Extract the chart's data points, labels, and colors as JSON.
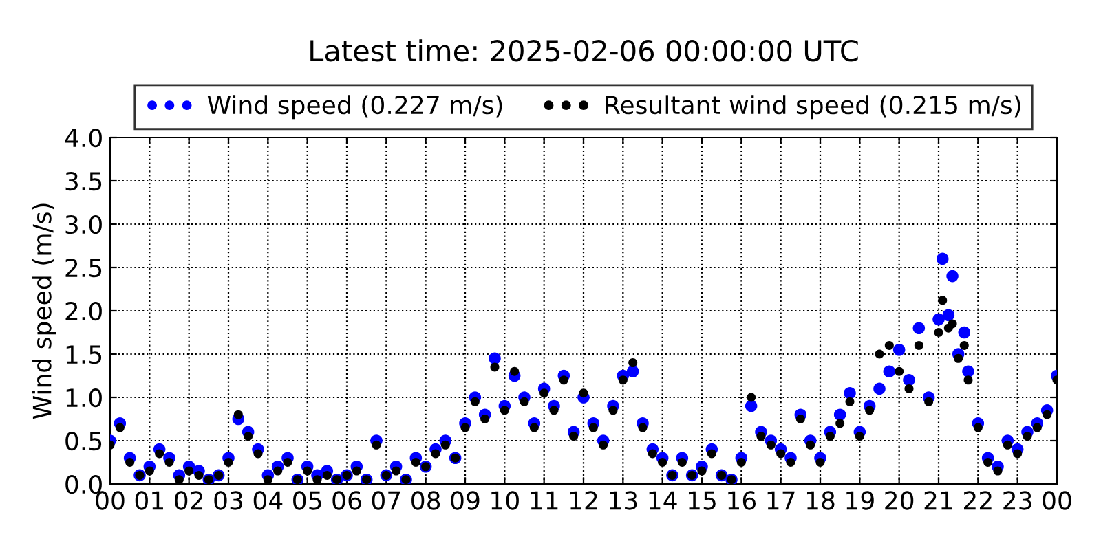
{
  "chart_data": {
    "type": "scatter",
    "title": "Latest time: 2025-02-06 00:00:00 UTC",
    "ylabel": "Wind speed (m/s)",
    "x": [
      0,
      0.25,
      0.5,
      0.75,
      1,
      1.25,
      1.5,
      1.75,
      2,
      2.25,
      2.5,
      2.75,
      3,
      3.25,
      3.5,
      3.75,
      4,
      4.25,
      4.5,
      4.75,
      5,
      5.25,
      5.5,
      5.75,
      6,
      6.25,
      6.5,
      6.75,
      7,
      7.25,
      7.5,
      7.75,
      8,
      8.25,
      8.5,
      8.75,
      9,
      9.25,
      9.5,
      9.75,
      10,
      10.25,
      10.5,
      10.75,
      11,
      11.25,
      11.5,
      11.75,
      12,
      12.25,
      12.5,
      12.75,
      13,
      13.25,
      13.5,
      13.75,
      14,
      14.25,
      14.5,
      14.75,
      15,
      15.25,
      15.5,
      15.75,
      16,
      16.25,
      16.5,
      16.75,
      17,
      17.25,
      17.5,
      17.75,
      18,
      18.25,
      18.5,
      18.75,
      19,
      19.25,
      19.5,
      19.75,
      20,
      20.25,
      20.5,
      20.75,
      21,
      21.1,
      21.25,
      21.35,
      21.5,
      21.65,
      21.75,
      22,
      22.25,
      22.5,
      22.75,
      23,
      23.25,
      23.5,
      23.75,
      24
    ],
    "series": [
      {
        "name": "Wind speed (0.227 m/s)",
        "color": "#0000ff",
        "values": [
          0.5,
          0.7,
          0.3,
          0.1,
          0.2,
          0.4,
          0.3,
          0.1,
          0.2,
          0.15,
          0.05,
          0.1,
          0.3,
          0.75,
          0.6,
          0.4,
          0.1,
          0.2,
          0.3,
          0.05,
          0.2,
          0.1,
          0.15,
          0.05,
          0.1,
          0.2,
          0.05,
          0.5,
          0.1,
          0.2,
          0.05,
          0.3,
          0.2,
          0.4,
          0.5,
          0.3,
          0.7,
          1.0,
          0.8,
          1.45,
          0.9,
          1.25,
          1.0,
          0.7,
          1.1,
          0.9,
          1.25,
          0.6,
          1.0,
          0.7,
          0.5,
          0.9,
          1.25,
          1.3,
          0.7,
          0.4,
          0.3,
          0.1,
          0.3,
          0.1,
          0.2,
          0.4,
          0.1,
          0.05,
          0.3,
          0.9,
          0.6,
          0.5,
          0.4,
          0.3,
          0.8,
          0.5,
          0.3,
          0.6,
          0.8,
          1.05,
          0.6,
          0.9,
          1.1,
          1.3,
          1.55,
          1.2,
          1.8,
          1.0,
          1.9,
          2.6,
          1.95,
          2.4,
          1.5,
          1.75,
          1.3,
          0.7,
          0.3,
          0.2,
          0.5,
          0.4,
          0.6,
          0.7,
          0.85,
          1.25
        ]
      },
      {
        "name": "Resultant wind speed (0.215 m/s)",
        "color": "#000000",
        "values": [
          0.45,
          0.65,
          0.25,
          0.1,
          0.15,
          0.35,
          0.25,
          0.05,
          0.15,
          0.1,
          0.05,
          0.1,
          0.25,
          0.8,
          0.55,
          0.35,
          0.05,
          0.15,
          0.25,
          0.05,
          0.15,
          0.05,
          0.1,
          0.05,
          0.1,
          0.15,
          0.05,
          0.45,
          0.1,
          0.15,
          0.05,
          0.25,
          0.2,
          0.35,
          0.45,
          0.3,
          0.65,
          0.95,
          0.75,
          1.35,
          0.85,
          1.3,
          0.95,
          0.65,
          1.05,
          0.85,
          1.2,
          0.55,
          1.05,
          0.65,
          0.45,
          0.85,
          1.2,
          1.4,
          0.65,
          0.35,
          0.25,
          0.1,
          0.25,
          0.1,
          0.15,
          0.35,
          0.1,
          0.05,
          0.25,
          1.0,
          0.55,
          0.45,
          0.35,
          0.25,
          0.75,
          0.45,
          0.25,
          0.55,
          0.7,
          0.95,
          0.55,
          0.85,
          1.5,
          1.6,
          1.3,
          1.1,
          1.6,
          0.95,
          1.75,
          2.12,
          1.8,
          1.85,
          1.45,
          1.6,
          1.2,
          0.65,
          0.25,
          0.15,
          0.45,
          0.35,
          0.55,
          0.65,
          0.8,
          1.2
        ]
      }
    ],
    "xlim": [
      0,
      24
    ],
    "xticks": [
      {
        "value": 0,
        "label": "00"
      },
      {
        "value": 1,
        "label": "01"
      },
      {
        "value": 2,
        "label": "02"
      },
      {
        "value": 3,
        "label": "03"
      },
      {
        "value": 4,
        "label": "04"
      },
      {
        "value": 5,
        "label": "05"
      },
      {
        "value": 6,
        "label": "06"
      },
      {
        "value": 7,
        "label": "07"
      },
      {
        "value": 8,
        "label": "08"
      },
      {
        "value": 9,
        "label": "09"
      },
      {
        "value": 10,
        "label": "10"
      },
      {
        "value": 11,
        "label": "11"
      },
      {
        "value": 12,
        "label": "12"
      },
      {
        "value": 13,
        "label": "13"
      },
      {
        "value": 14,
        "label": "14"
      },
      {
        "value": 15,
        "label": "15"
      },
      {
        "value": 16,
        "label": "16"
      },
      {
        "value": 17,
        "label": "17"
      },
      {
        "value": 18,
        "label": "18"
      },
      {
        "value": 19,
        "label": "19"
      },
      {
        "value": 20,
        "label": "20"
      },
      {
        "value": 21,
        "label": "21"
      },
      {
        "value": 22,
        "label": "22"
      },
      {
        "value": 23,
        "label": "23"
      },
      {
        "value": 24,
        "label": "00"
      }
    ],
    "ylim": [
      0,
      4
    ],
    "yticks": [
      {
        "value": 0,
        "label": "0.0"
      },
      {
        "value": 0.5,
        "label": "0.5"
      },
      {
        "value": 1,
        "label": "1.0"
      },
      {
        "value": 1.5,
        "label": "1.5"
      },
      {
        "value": 2,
        "label": "2.0"
      },
      {
        "value": 2.5,
        "label": "2.5"
      },
      {
        "value": 3,
        "label": "3.0"
      },
      {
        "value": 3.5,
        "label": "3.5"
      },
      {
        "value": 4,
        "label": "4.0"
      }
    ],
    "grid": true,
    "legend": "top",
    "marker": "circle"
  }
}
